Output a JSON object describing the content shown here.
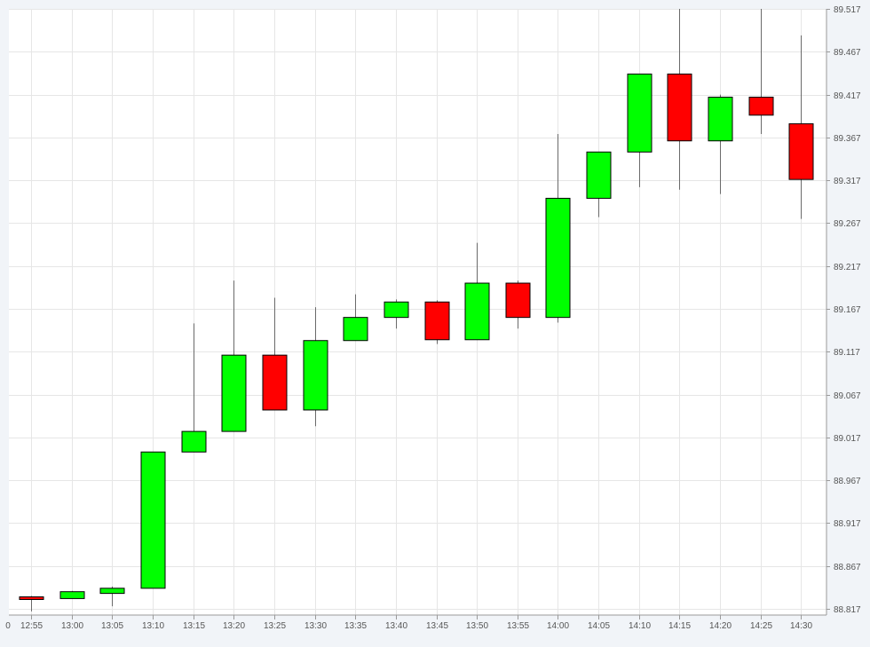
{
  "colors": {
    "up": "#00ff00",
    "down": "#ff0000",
    "outline": "#000000",
    "wick": "#6a6a6a",
    "grid": "#e6e6e6",
    "axis": "#9a9a9a",
    "frame_bg": "#f1f4f8",
    "plot_bg": "#ffffff"
  },
  "chart_data": {
    "type": "candlestick",
    "grid": true,
    "y_axis_position": "right",
    "ylim": [
      88.807,
      89.517
    ],
    "y_ticks": [
      "88.817",
      "88.867",
      "88.917",
      "88.967",
      "89.017",
      "89.067",
      "89.117",
      "89.167",
      "89.217",
      "89.267",
      "89.317",
      "89.367",
      "89.417",
      "89.467",
      "89.517"
    ],
    "x_edge_label": "0",
    "x_ticks": [
      "12:55",
      "13:00",
      "13:05",
      "13:10",
      "13:15",
      "13:20",
      "13:25",
      "13:30",
      "13:35",
      "13:40",
      "13:45",
      "13:50",
      "13:55",
      "14:00",
      "14:05",
      "14:10",
      "14:15",
      "14:20",
      "14:25",
      "14:30"
    ],
    "candles": [
      {
        "time": "12:55",
        "open": 88.831,
        "high": 88.832,
        "low": 88.814,
        "close": 88.829
      },
      {
        "time": "13:00",
        "open": 88.829,
        "high": 88.838,
        "low": 88.829,
        "close": 88.837
      },
      {
        "time": "13:05",
        "open": 88.835,
        "high": 88.843,
        "low": 88.82,
        "close": 88.841
      },
      {
        "time": "13:10",
        "open": 88.841,
        "high": 89.0,
        "low": 88.841,
        "close": 89.0
      },
      {
        "time": "13:15",
        "open": 89.0,
        "high": 89.15,
        "low": 89.0,
        "close": 89.024
      },
      {
        "time": "13:20",
        "open": 89.024,
        "high": 89.2,
        "low": 89.024,
        "close": 89.113
      },
      {
        "time": "13:25",
        "open": 89.113,
        "high": 89.18,
        "low": 89.049,
        "close": 89.049
      },
      {
        "time": "13:30",
        "open": 89.049,
        "high": 89.169,
        "low": 89.03,
        "close": 89.13
      },
      {
        "time": "13:35",
        "open": 89.13,
        "high": 89.184,
        "low": 89.13,
        "close": 89.157
      },
      {
        "time": "13:40",
        "open": 89.157,
        "high": 89.178,
        "low": 89.144,
        "close": 89.175
      },
      {
        "time": "13:45",
        "open": 89.175,
        "high": 89.177,
        "low": 89.126,
        "close": 89.131
      },
      {
        "time": "13:50",
        "open": 89.131,
        "high": 89.244,
        "low": 89.131,
        "close": 89.197
      },
      {
        "time": "13:55",
        "open": 89.197,
        "high": 89.2,
        "low": 89.144,
        "close": 89.157
      },
      {
        "time": "14:00",
        "open": 89.157,
        "high": 89.371,
        "low": 89.151,
        "close": 89.296
      },
      {
        "time": "14:05",
        "open": 89.296,
        "high": 89.35,
        "low": 89.274,
        "close": 89.35
      },
      {
        "time": "14:10",
        "open": 89.35,
        "high": 89.441,
        "low": 89.309,
        "close": 89.441
      },
      {
        "time": "14:15",
        "open": 89.441,
        "high": 89.517,
        "low": 89.306,
        "close": 89.363
      },
      {
        "time": "14:20",
        "open": 89.363,
        "high": 89.417,
        "low": 89.301,
        "close": 89.414
      },
      {
        "time": "14:25",
        "open": 89.414,
        "high": 89.517,
        "low": 89.371,
        "close": 89.393
      },
      {
        "time": "14:30",
        "open": 89.383,
        "high": 89.486,
        "low": 89.272,
        "close": 89.318
      }
    ]
  }
}
